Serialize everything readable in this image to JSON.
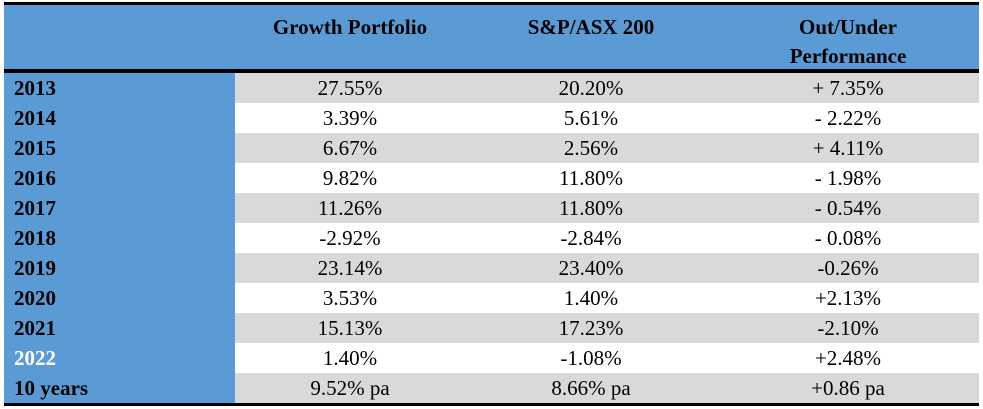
{
  "table": {
    "headers": [
      "",
      "Growth Portfolio",
      "S&P/ASX 200",
      "Out/Under Performance"
    ],
    "header_lines": {
      "col3_line1": "Out/Under",
      "col3_line2": "Performance"
    },
    "rows": [
      {
        "label": "2013",
        "growth": "27.55%",
        "index": "20.20%",
        "diff": "+ 7.35%",
        "sign": "pos"
      },
      {
        "label": "2014",
        "growth": "3.39%",
        "index": "5.61%",
        "diff": "- 2.22%",
        "sign": "neg"
      },
      {
        "label": "2015",
        "growth": "6.67%",
        "index": "2.56%",
        "diff": "+ 4.11%",
        "sign": "pos"
      },
      {
        "label": "2016",
        "growth": "9.82%",
        "index": "11.80%",
        "diff": "- 1.98%",
        "sign": "neg"
      },
      {
        "label": "2017",
        "growth": "11.26%",
        "index": "11.80%",
        "diff": "- 0.54%",
        "sign": "neg"
      },
      {
        "label": "2018",
        "growth": "-2.92%",
        "index": "-2.84%",
        "diff": "- 0.08%",
        "sign": "neg"
      },
      {
        "label": "2019",
        "growth": "23.14%",
        "index": "23.40%",
        "diff": "-0.26%",
        "sign": "neg"
      },
      {
        "label": "2020",
        "growth": "3.53%",
        "index": "1.40%",
        "diff": "+2.13%",
        "sign": "pos"
      },
      {
        "label": "2021",
        "growth": "15.13%",
        "index": "17.23%",
        "diff": "-2.10%",
        "sign": "neg"
      },
      {
        "label": "2022",
        "growth": "1.40%",
        "index": "-1.08%",
        "diff": "+2.48%",
        "sign": "pos"
      },
      {
        "label": "10 years",
        "growth": "9.52% pa",
        "index": "8.66% pa",
        "diff": "+0.86 pa",
        "sign": "pos"
      }
    ]
  },
  "colors": {
    "header_bg": "#5B9BD5",
    "row_grey": "#D9D9D9",
    "positive": "#00B050",
    "negative": "#FF0000"
  }
}
